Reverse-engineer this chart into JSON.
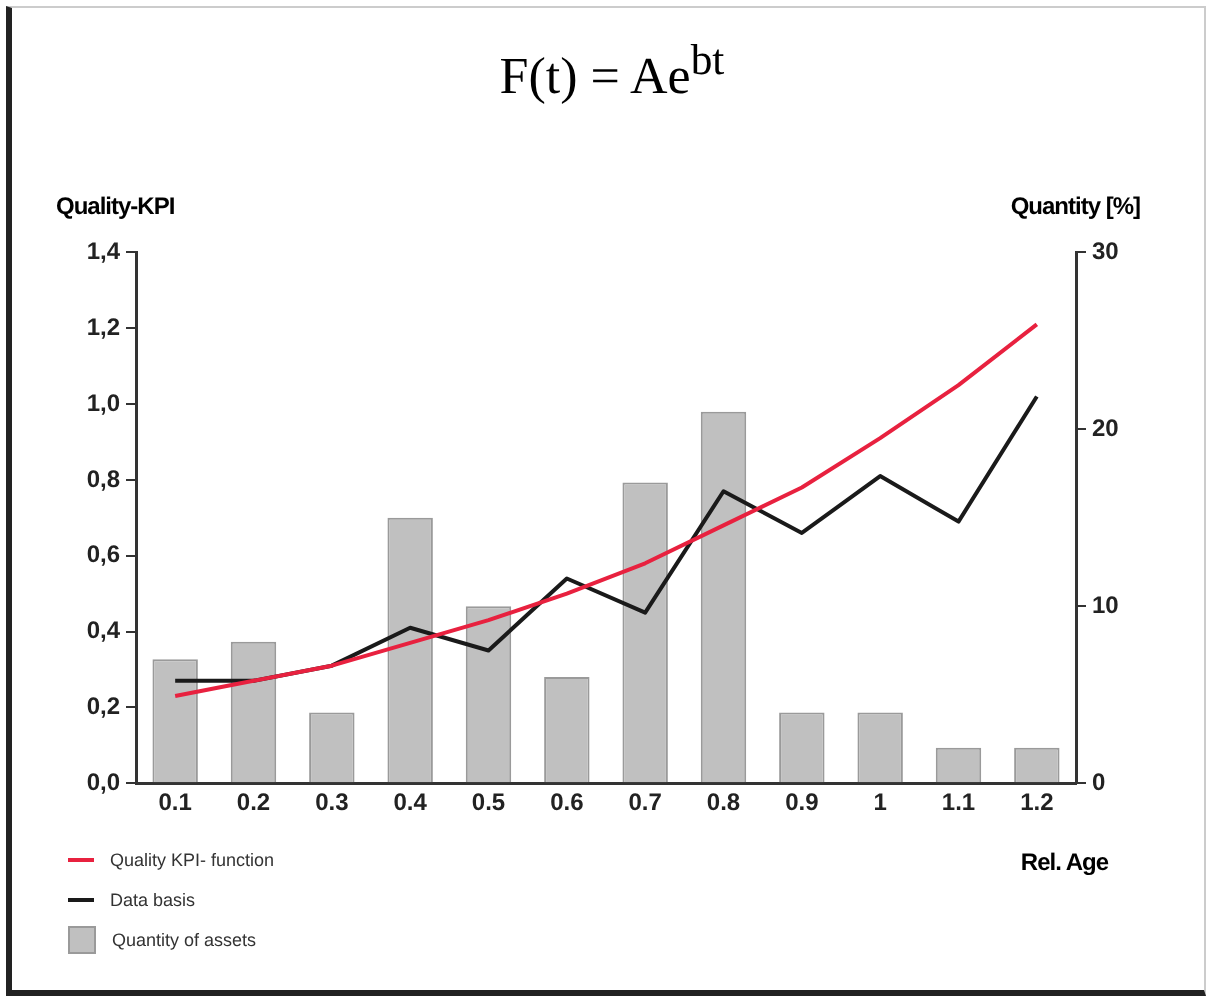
{
  "chart_data": {
    "type": "bar",
    "title": "F(t) = Ae$^{bt}$",
    "ylabel": "Quality-KPI",
    "y2label": "Quantity [%]",
    "xlabel": "Rel. Age",
    "categories": [
      "0.1",
      "0.2",
      "0.3",
      "0.4",
      "0.5",
      "0.6",
      "0.7",
      "0.8",
      "0.9",
      "1",
      "1.1",
      "1.2"
    ],
    "series": [
      {
        "name": "Quality KPI- function",
        "type": "line",
        "color": "#e8213f",
        "values": [
          0.23,
          0.27,
          0.31,
          0.37,
          0.43,
          0.5,
          0.58,
          0.68,
          0.78,
          0.91,
          1.05,
          1.21
        ]
      },
      {
        "name": "Data basis",
        "type": "line",
        "color": "#1a1a1a",
        "values": [
          0.27,
          0.27,
          0.31,
          0.41,
          0.35,
          0.54,
          0.45,
          0.77,
          0.66,
          0.81,
          0.69,
          1.02
        ]
      },
      {
        "name": "Quantity of assets",
        "axis": "y2",
        "color": "#c0c0c0",
        "values": [
          7,
          8,
          4,
          15,
          10,
          6,
          17,
          21,
          4,
          4,
          2,
          2
        ]
      }
    ],
    "ylim": [
      0,
      1.4
    ],
    "yticks": [
      {
        "value": 0,
        "label": "0,0"
      },
      {
        "value": 0.2,
        "label": "0,2"
      },
      {
        "value": 0.4,
        "label": "0,4"
      },
      {
        "value": 0.6,
        "label": "0,6"
      },
      {
        "value": 0.8,
        "label": "0,8"
      },
      {
        "value": 1,
        "label": "1,0"
      },
      {
        "value": 1.2,
        "label": "1,2"
      },
      {
        "value": 1.4,
        "label": "1,4"
      }
    ],
    "y2lim": [
      0,
      30
    ],
    "y2ticks": [
      0,
      10,
      20,
      30
    ],
    "grid": false,
    "legend": "bottom left",
    "marker": "none"
  }
}
